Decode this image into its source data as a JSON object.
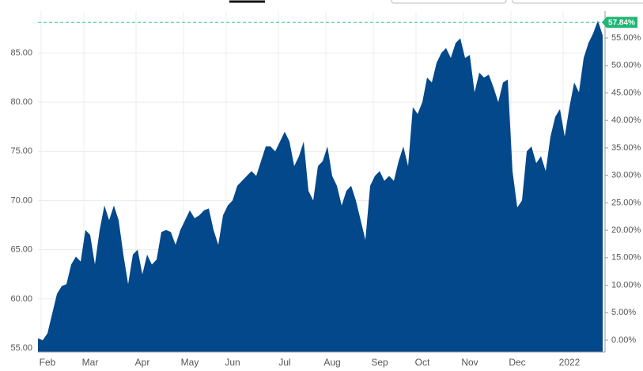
{
  "chart_data": {
    "type": "area",
    "series": [
      {
        "color": "#03488a",
        "values": [
          56.0,
          55.8,
          56.5,
          58.5,
          60.5,
          61.3,
          61.5,
          63.5,
          64.3,
          63.8,
          67.0,
          66.5,
          63.5,
          67.0,
          69.5,
          68.0,
          69.5,
          68.0,
          64.5,
          61.5,
          64.5,
          65.0,
          62.5,
          64.5,
          63.5,
          64.0,
          66.8,
          67.0,
          66.8,
          65.5,
          67.0,
          68.0,
          69.0,
          68.2,
          68.5,
          69.0,
          69.2,
          67.0,
          65.5,
          68.5,
          69.5,
          70.0,
          71.5,
          72.0,
          72.5,
          73.0,
          72.5,
          74.0,
          75.5,
          75.5,
          75.0,
          76.0,
          77.0,
          76.0,
          73.5,
          74.5,
          76.0,
          71.0,
          70.0,
          73.5,
          74.0,
          75.5,
          72.5,
          71.5,
          69.5,
          71.0,
          71.5,
          70.0,
          68.0,
          66.0,
          71.5,
          72.5,
          73.0,
          72.0,
          72.5,
          72.0,
          74.0,
          75.5,
          73.5,
          79.5,
          78.8,
          80.0,
          82.5,
          82.0,
          84.0,
          85.0,
          85.5,
          84.5,
          86.0,
          86.5,
          84.5,
          84.8,
          81.0,
          83.0,
          82.5,
          82.8,
          81.5,
          80.0,
          82.0,
          82.3,
          73.0,
          69.3,
          70.0,
          75.0,
          75.5,
          73.8,
          74.5,
          73.0,
          76.5,
          78.5,
          79.3,
          76.5,
          79.5,
          82.0,
          81.0,
          84.5,
          86.0,
          87.0,
          88.3,
          86.8
        ]
      }
    ],
    "categories": [
      null,
      null,
      "Feb",
      null,
      null,
      null,
      null,
      null,
      null,
      null,
      null,
      "Mar",
      null,
      null,
      null,
      null,
      null,
      null,
      null,
      null,
      null,
      null,
      "Apr",
      null,
      null,
      null,
      null,
      null,
      null,
      null,
      null,
      null,
      "May",
      null,
      null,
      null,
      null,
      null,
      null,
      null,
      null,
      "Jun",
      null,
      null,
      null,
      null,
      null,
      null,
      null,
      null,
      null,
      null,
      "Jul",
      null,
      null,
      null,
      null,
      null,
      null,
      null,
      null,
      null,
      "Aug",
      null,
      null,
      null,
      null,
      null,
      null,
      null,
      null,
      null,
      "Sep",
      null,
      null,
      null,
      null,
      null,
      null,
      null,
      null,
      "Oct",
      null,
      null,
      null,
      null,
      null,
      null,
      null,
      null,
      null,
      "Nov",
      null,
      null,
      null,
      null,
      null,
      null,
      null,
      null,
      null,
      "Dec",
      null,
      null,
      null,
      null,
      null,
      null,
      null,
      null,
      null,
      null,
      "2022",
      null,
      null,
      null,
      null,
      null,
      null,
      null
    ],
    "ylim": [
      54.6,
      89.26
    ],
    "yticks": [
      {
        "value": 55,
        "label": "55.00"
      },
      {
        "value": 60,
        "label": "60.00"
      },
      {
        "value": 65,
        "label": "65.00"
      },
      {
        "value": 70,
        "label": "70.00"
      },
      {
        "value": 75,
        "label": "75.00"
      },
      {
        "value": 80,
        "label": "80.00"
      },
      {
        "value": 85,
        "label": "85.00"
      }
    ],
    "y2lim": [
      -2.16,
      59.9
    ],
    "y2ticks": [
      {
        "value": 0,
        "label": "0.00%"
      },
      {
        "value": 5,
        "label": "5.00%"
      },
      {
        "value": 10,
        "label": "10.00%"
      },
      {
        "value": 15,
        "label": "15.00%"
      },
      {
        "value": 20,
        "label": "20.00%"
      },
      {
        "value": 25,
        "label": "25.00%"
      },
      {
        "value": 30,
        "label": "30.00%"
      },
      {
        "value": 35,
        "label": "35.00%"
      },
      {
        "value": 40,
        "label": "40.00%"
      },
      {
        "value": 45,
        "label": "45.00%"
      },
      {
        "value": 50,
        "label": "50.00%"
      },
      {
        "value": 55,
        "label": "55.00%"
      }
    ],
    "last_change": {
      "value": 57.84,
      "label": "57.84%"
    },
    "grid": true
  }
}
